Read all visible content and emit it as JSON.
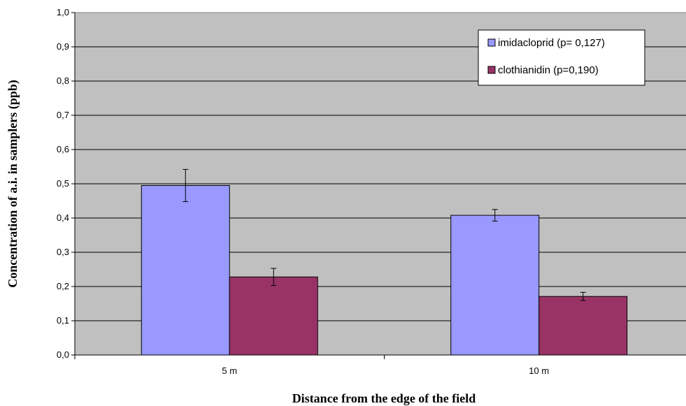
{
  "chart_data": {
    "type": "bar",
    "categories": [
      "5 m",
      "10 m"
    ],
    "series": [
      {
        "name": "imidacloprid (p= 0,127)",
        "values": [
          0.495,
          0.408
        ],
        "error": [
          0.047,
          0.017
        ],
        "color": "#9999ff"
      },
      {
        "name": "clothianidin (p=0,190)",
        "values": [
          0.228,
          0.171
        ],
        "error": [
          0.025,
          0.012
        ],
        "color": "#993366"
      }
    ],
    "xlabel": "Distance from the edge of the field",
    "ylabel": "Concentration of a.i. in samplers (ppb)",
    "ylim": [
      0,
      1.0
    ],
    "yticks": [
      "0,0",
      "0,1",
      "0,2",
      "0,3",
      "0,4",
      "0,5",
      "0,6",
      "0,7",
      "0,8",
      "0,9",
      "1,0"
    ],
    "grid": true,
    "legend_position": "top-right",
    "plot_background": "#c0c0c0"
  }
}
